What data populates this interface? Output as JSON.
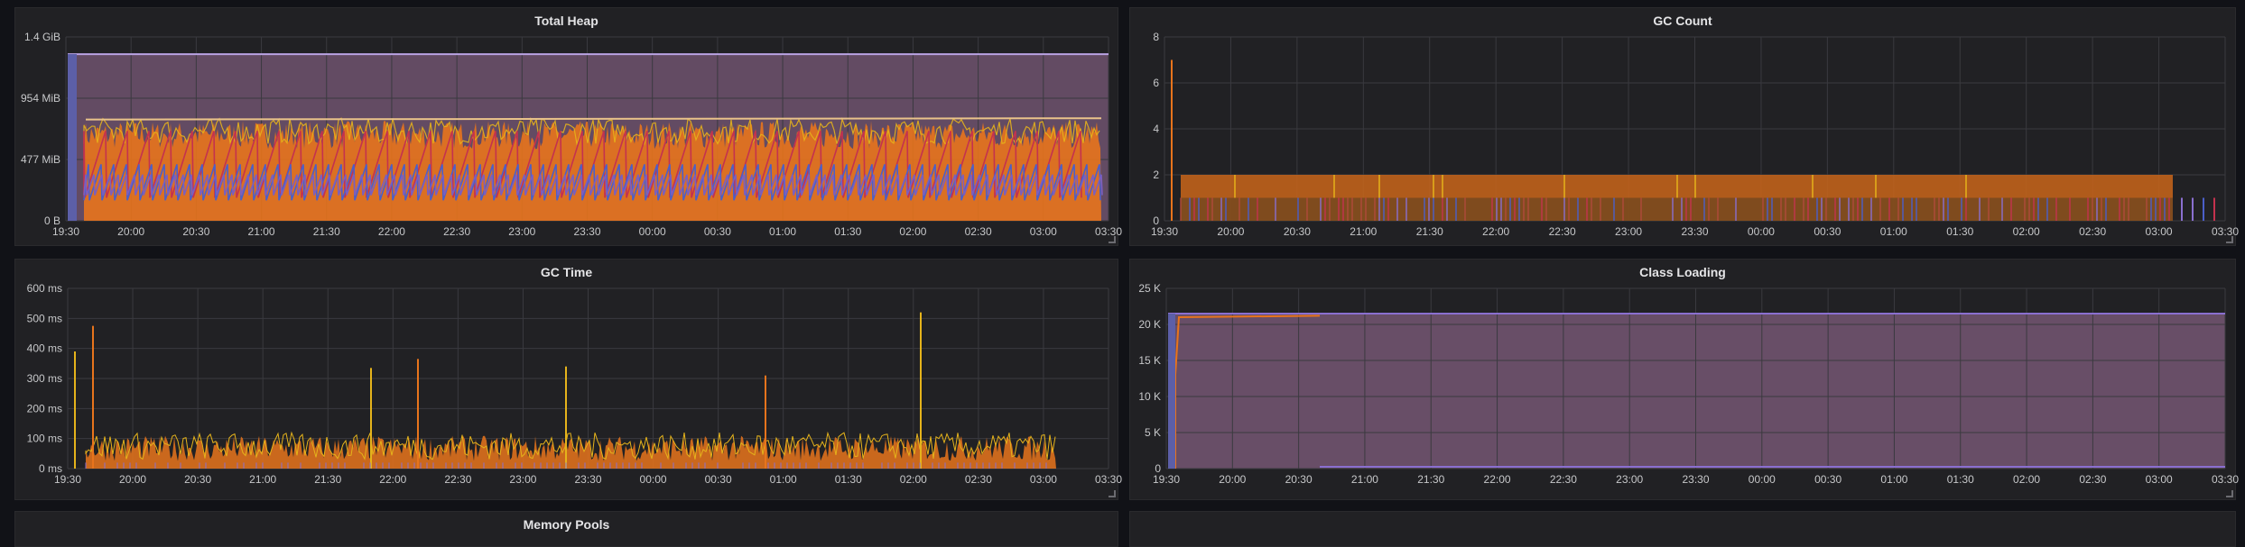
{
  "dashboard": {
    "panels": [
      {
        "title": "Total Heap",
        "chart_data": {
          "type": "area",
          "title": "Total Heap",
          "xlabel": "",
          "ylabel": "",
          "y_ticks": [
            "0 B",
            "477 MiB",
            "954 MiB",
            "1.4 GiB"
          ],
          "x_ticks": [
            "19:30",
            "20:00",
            "20:30",
            "21:00",
            "21:30",
            "22:00",
            "22:30",
            "23:00",
            "23:30",
            "00:00",
            "00:30",
            "01:00",
            "01:30",
            "02:00",
            "02:30",
            "03:00",
            "03:30"
          ],
          "ylim_mib": [
            0,
            1434
          ],
          "series": [
            {
              "values_mib_approx": {
                "max_heap": 1300,
                "committed": 790,
                "used_peak": 780,
                "used_low": 300
              }
            }
          ],
          "grid": true
        }
      },
      {
        "title": "GC Count",
        "chart_data": {
          "type": "bar",
          "title": "GC Count",
          "y_ticks": [
            "0",
            "2",
            "4",
            "6",
            "8"
          ],
          "x_ticks": [
            "19:30",
            "20:00",
            "20:30",
            "21:00",
            "21:30",
            "22:00",
            "22:30",
            "23:00",
            "23:30",
            "00:00",
            "00:30",
            "01:00",
            "01:30",
            "02:00",
            "02:30",
            "03:00",
            "03:30"
          ],
          "ylim": [
            0,
            8
          ],
          "spike_value": 7,
          "typical_value": 2,
          "grid": true
        }
      },
      {
        "title": "GC Time",
        "chart_data": {
          "type": "line",
          "title": "GC Time",
          "y_ticks": [
            "0 ms",
            "100 ms",
            "200 ms",
            "300 ms",
            "400 ms",
            "500 ms",
            "600 ms"
          ],
          "x_ticks": [
            "19:30",
            "20:00",
            "20:30",
            "21:00",
            "21:30",
            "22:00",
            "22:30",
            "23:00",
            "23:30",
            "00:00",
            "00:30",
            "01:00",
            "01:30",
            "02:00",
            "02:30",
            "03:00",
            "03:30"
          ],
          "ylim": [
            0,
            600
          ],
          "spikes_ms": [
            390,
            475,
            335,
            365,
            340,
            310,
            520
          ],
          "grid": true
        }
      },
      {
        "title": "Class Loading",
        "chart_data": {
          "type": "area",
          "title": "Class Loading",
          "y_ticks": [
            "0",
            "5 K",
            "10 K",
            "15 K",
            "20 K",
            "25 K"
          ],
          "x_ticks": [
            "19:30",
            "20:00",
            "20:30",
            "21:00",
            "21:30",
            "22:00",
            "22:30",
            "23:00",
            "23:30",
            "00:00",
            "00:30",
            "01:00",
            "01:30",
            "02:00",
            "02:30",
            "03:00",
            "03:30"
          ],
          "ylim": [
            0,
            25000
          ],
          "plateau": 21500,
          "grid": true
        }
      },
      {
        "title": "Memory Pools"
      }
    ]
  },
  "colors": {
    "orange": "#e8741c",
    "yellow": "#e5b31b",
    "purple": "#8a6fd0",
    "red": "#c4324e",
    "blue": "#4b5fc9",
    "pink_fill": "#7a5a78",
    "grid": "#3a3a3f"
  }
}
